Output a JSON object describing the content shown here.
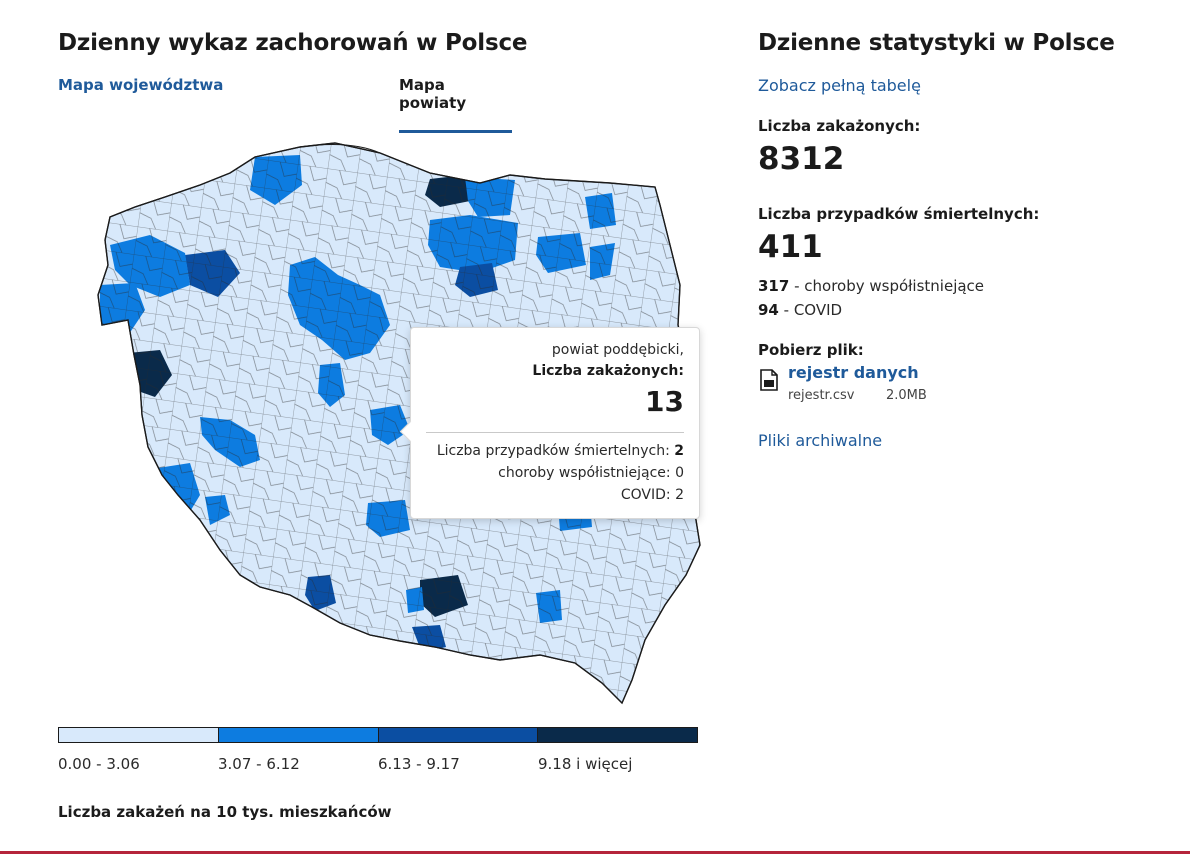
{
  "left": {
    "title": "Dzienny wykaz zachorowań w Polsce",
    "tabs": [
      {
        "label": "Mapa województwa",
        "active": false
      },
      {
        "label": "Mapa powiaty",
        "active": true
      }
    ]
  },
  "map": {
    "tooltip": {
      "name": "powiat poddębicki,",
      "infections_label": "Liczba zakażonych:",
      "infections_value": "13",
      "deaths_label": "Liczba przypadków śmiertelnych:",
      "deaths_value": "2",
      "comorbid_label": "choroby współistniejące:",
      "comorbid_value": "0",
      "covid_label": "COVID:",
      "covid_value": "2"
    },
    "legend": {
      "ranges": [
        {
          "label": "0.00 - 3.06",
          "color": "#d8e9fb"
        },
        {
          "label": "3.07 - 6.12",
          "color": "#0d7ce0"
        },
        {
          "label": "6.13 - 9.17",
          "color": "#0b4ea2"
        },
        {
          "label": "9.18 i więcej",
          "color": "#0a2a4a"
        }
      ],
      "caption": "Liczba zakażeń na 10 tys. mieszkańców"
    }
  },
  "right": {
    "title": "Dzienne statystyki w Polsce",
    "full_table_link": "Zobacz pełną tabelę",
    "infections_label": "Liczba zakażonych:",
    "infections_value": "8312",
    "deaths_label": "Liczba przypadków śmiertelnych:",
    "deaths_value": "411",
    "comorbid_value": "317",
    "comorbid_label": "- choroby współistniejące",
    "covid_value": "94",
    "covid_label": "- COVID",
    "download_title": "Pobierz plik:",
    "file_link": "rejestr danych",
    "file_name": "rejestr.csv",
    "file_size": "2.0MB",
    "archive_link": "Pliki archiwalne"
  },
  "colors": {
    "accent": "#1f5a9a",
    "bottom_rule": "#b5243b",
    "map_low": "#d8e9fb",
    "map_mid": "#0d7ce0",
    "map_high": "#0b4ea2",
    "map_top": "#0a2a4a"
  }
}
